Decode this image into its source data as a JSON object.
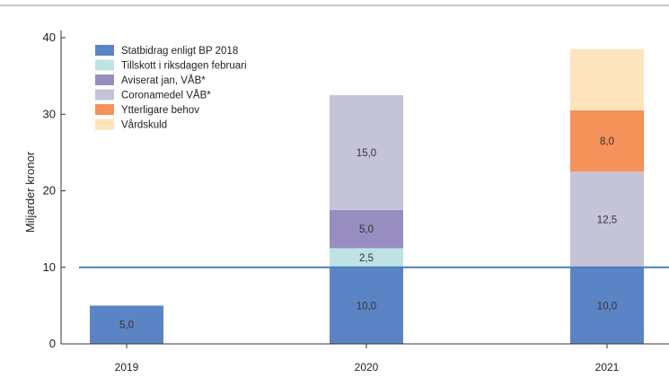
{
  "chart_data": {
    "type": "bar",
    "stacked": true,
    "categories": [
      "2019",
      "2020",
      "2021"
    ],
    "ylabel": "Miljarder kronor",
    "ylim": [
      0,
      40
    ],
    "yticks": [
      0,
      10,
      20,
      30,
      40
    ],
    "grid": false,
    "legend_position": "top-left",
    "reference_line": {
      "y": 10,
      "color": "#4a7cc0"
    },
    "series": [
      {
        "name": "Statbidrag enligt BP 2018",
        "color": "#5b84c4",
        "values": [
          5.0,
          10.0,
          10.0
        ],
        "labels": [
          "5,0",
          "10,0",
          "10,0"
        ]
      },
      {
        "name": "Tillskott i riksdagen februari",
        "color": "#bfe3e3",
        "values": [
          0,
          2.5,
          0
        ],
        "labels": [
          "",
          "2,5",
          ""
        ]
      },
      {
        "name": "Aviserat jan, VÅB*",
        "color": "#978dc1",
        "values": [
          0,
          5.0,
          0
        ],
        "labels": [
          "",
          "5,0",
          ""
        ]
      },
      {
        "name": "Coronamedel VÅB*",
        "color": "#c5c3d8",
        "values": [
          0,
          15.0,
          12.5
        ],
        "labels": [
          "",
          "15,0",
          "12,5"
        ]
      },
      {
        "name": "Ytterligare behov",
        "color": "#f59259",
        "values": [
          0,
          0,
          8.0
        ],
        "labels": [
          "",
          "",
          "8,0"
        ]
      },
      {
        "name": "Vårdskuld",
        "color": "#fde4bd",
        "values": [
          0,
          0,
          8.0
        ],
        "labels": [
          "",
          "",
          ""
        ]
      }
    ]
  }
}
